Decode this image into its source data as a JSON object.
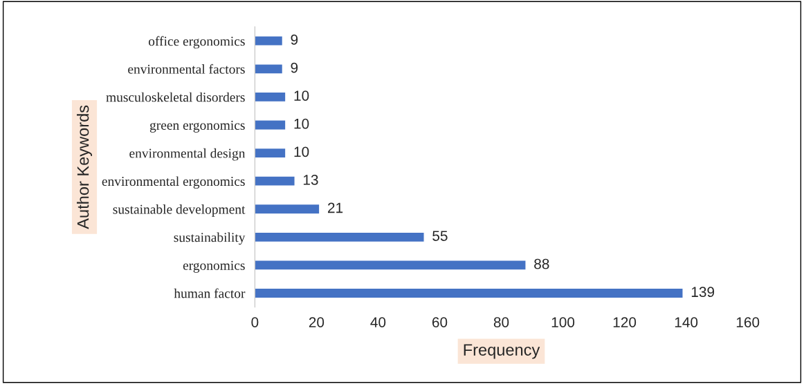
{
  "chart_data": {
    "type": "bar",
    "orientation": "horizontal",
    "xlabel": "Frequency",
    "ylabel": "Author Keywords",
    "categories": [
      "office ergonomics",
      "environmental factors",
      "musculoskeletal disorders",
      "green ergonomics",
      "environmental design",
      "environmental ergonomics",
      "sustainable development",
      "sustainability",
      "ergonomics",
      "human factor"
    ],
    "values": [
      9,
      9,
      10,
      10,
      10,
      13,
      21,
      55,
      88,
      139
    ],
    "color": "#4472c4",
    "xlim": [
      0,
      160
    ],
    "xticks": [
      0,
      20,
      40,
      60,
      80,
      100,
      120,
      140,
      160
    ],
    "grid": false,
    "legend": false,
    "data_labels": true
  }
}
